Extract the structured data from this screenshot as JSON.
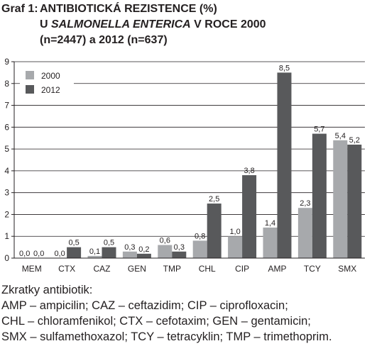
{
  "title": {
    "prefix": "Graf 1:",
    "line1": "ANTIBIOTICKÁ REZISTENCE (%)",
    "line2_start": "U ",
    "line2_italic": "SALMONELLA ENTERICA",
    "line2_end": " V ROCE 2000",
    "line3": "(n=2447) a 2012 (n=637)"
  },
  "notes": {
    "heading": "Zkratky antibiotik:",
    "lines": [
      "AMP – ampicilin; CAZ – ceftazidim; CIP – ciprofloxacin;",
      "CHL – chloramfenikol; CTX – cefotaxim; GEN – gentamicin;",
      "SMX – sulfamethoxazol; TCY – tetracyklin; TMP – trimethoprim."
    ]
  },
  "chart_data": {
    "type": "bar",
    "categories": [
      "MEM",
      "CTX",
      "CAZ",
      "GEN",
      "TMP",
      "CHL",
      "CIP",
      "AMP",
      "TCY",
      "SMX"
    ],
    "series": [
      {
        "name": "2000",
        "values": [
          0.0,
          0.0,
          0.1,
          0.3,
          0.6,
          0.8,
          1.0,
          1.4,
          2.3,
          5.4
        ],
        "labels": [
          "0,0",
          "0,0",
          "0,1",
          "0,3",
          "0,6",
          "0,8",
          "1,0",
          "1,4",
          "2,3",
          "5,4"
        ],
        "color": "#a7a9ac"
      },
      {
        "name": "2012",
        "values": [
          0.0,
          0.5,
          0.5,
          0.2,
          0.3,
          2.5,
          3.8,
          8.5,
          5.7,
          5.2
        ],
        "labels": [
          "0,0",
          "0,5",
          "0,5",
          "0,2",
          "0,3",
          "2,5",
          "3,8",
          "8,5",
          "5,7",
          "5,2"
        ],
        "color": "#58595b"
      }
    ],
    "ylim": [
      0,
      9
    ],
    "yticks": [
      0,
      1,
      2,
      3,
      4,
      5,
      6,
      7,
      8,
      9
    ],
    "grid": true,
    "legend": "top-left"
  }
}
